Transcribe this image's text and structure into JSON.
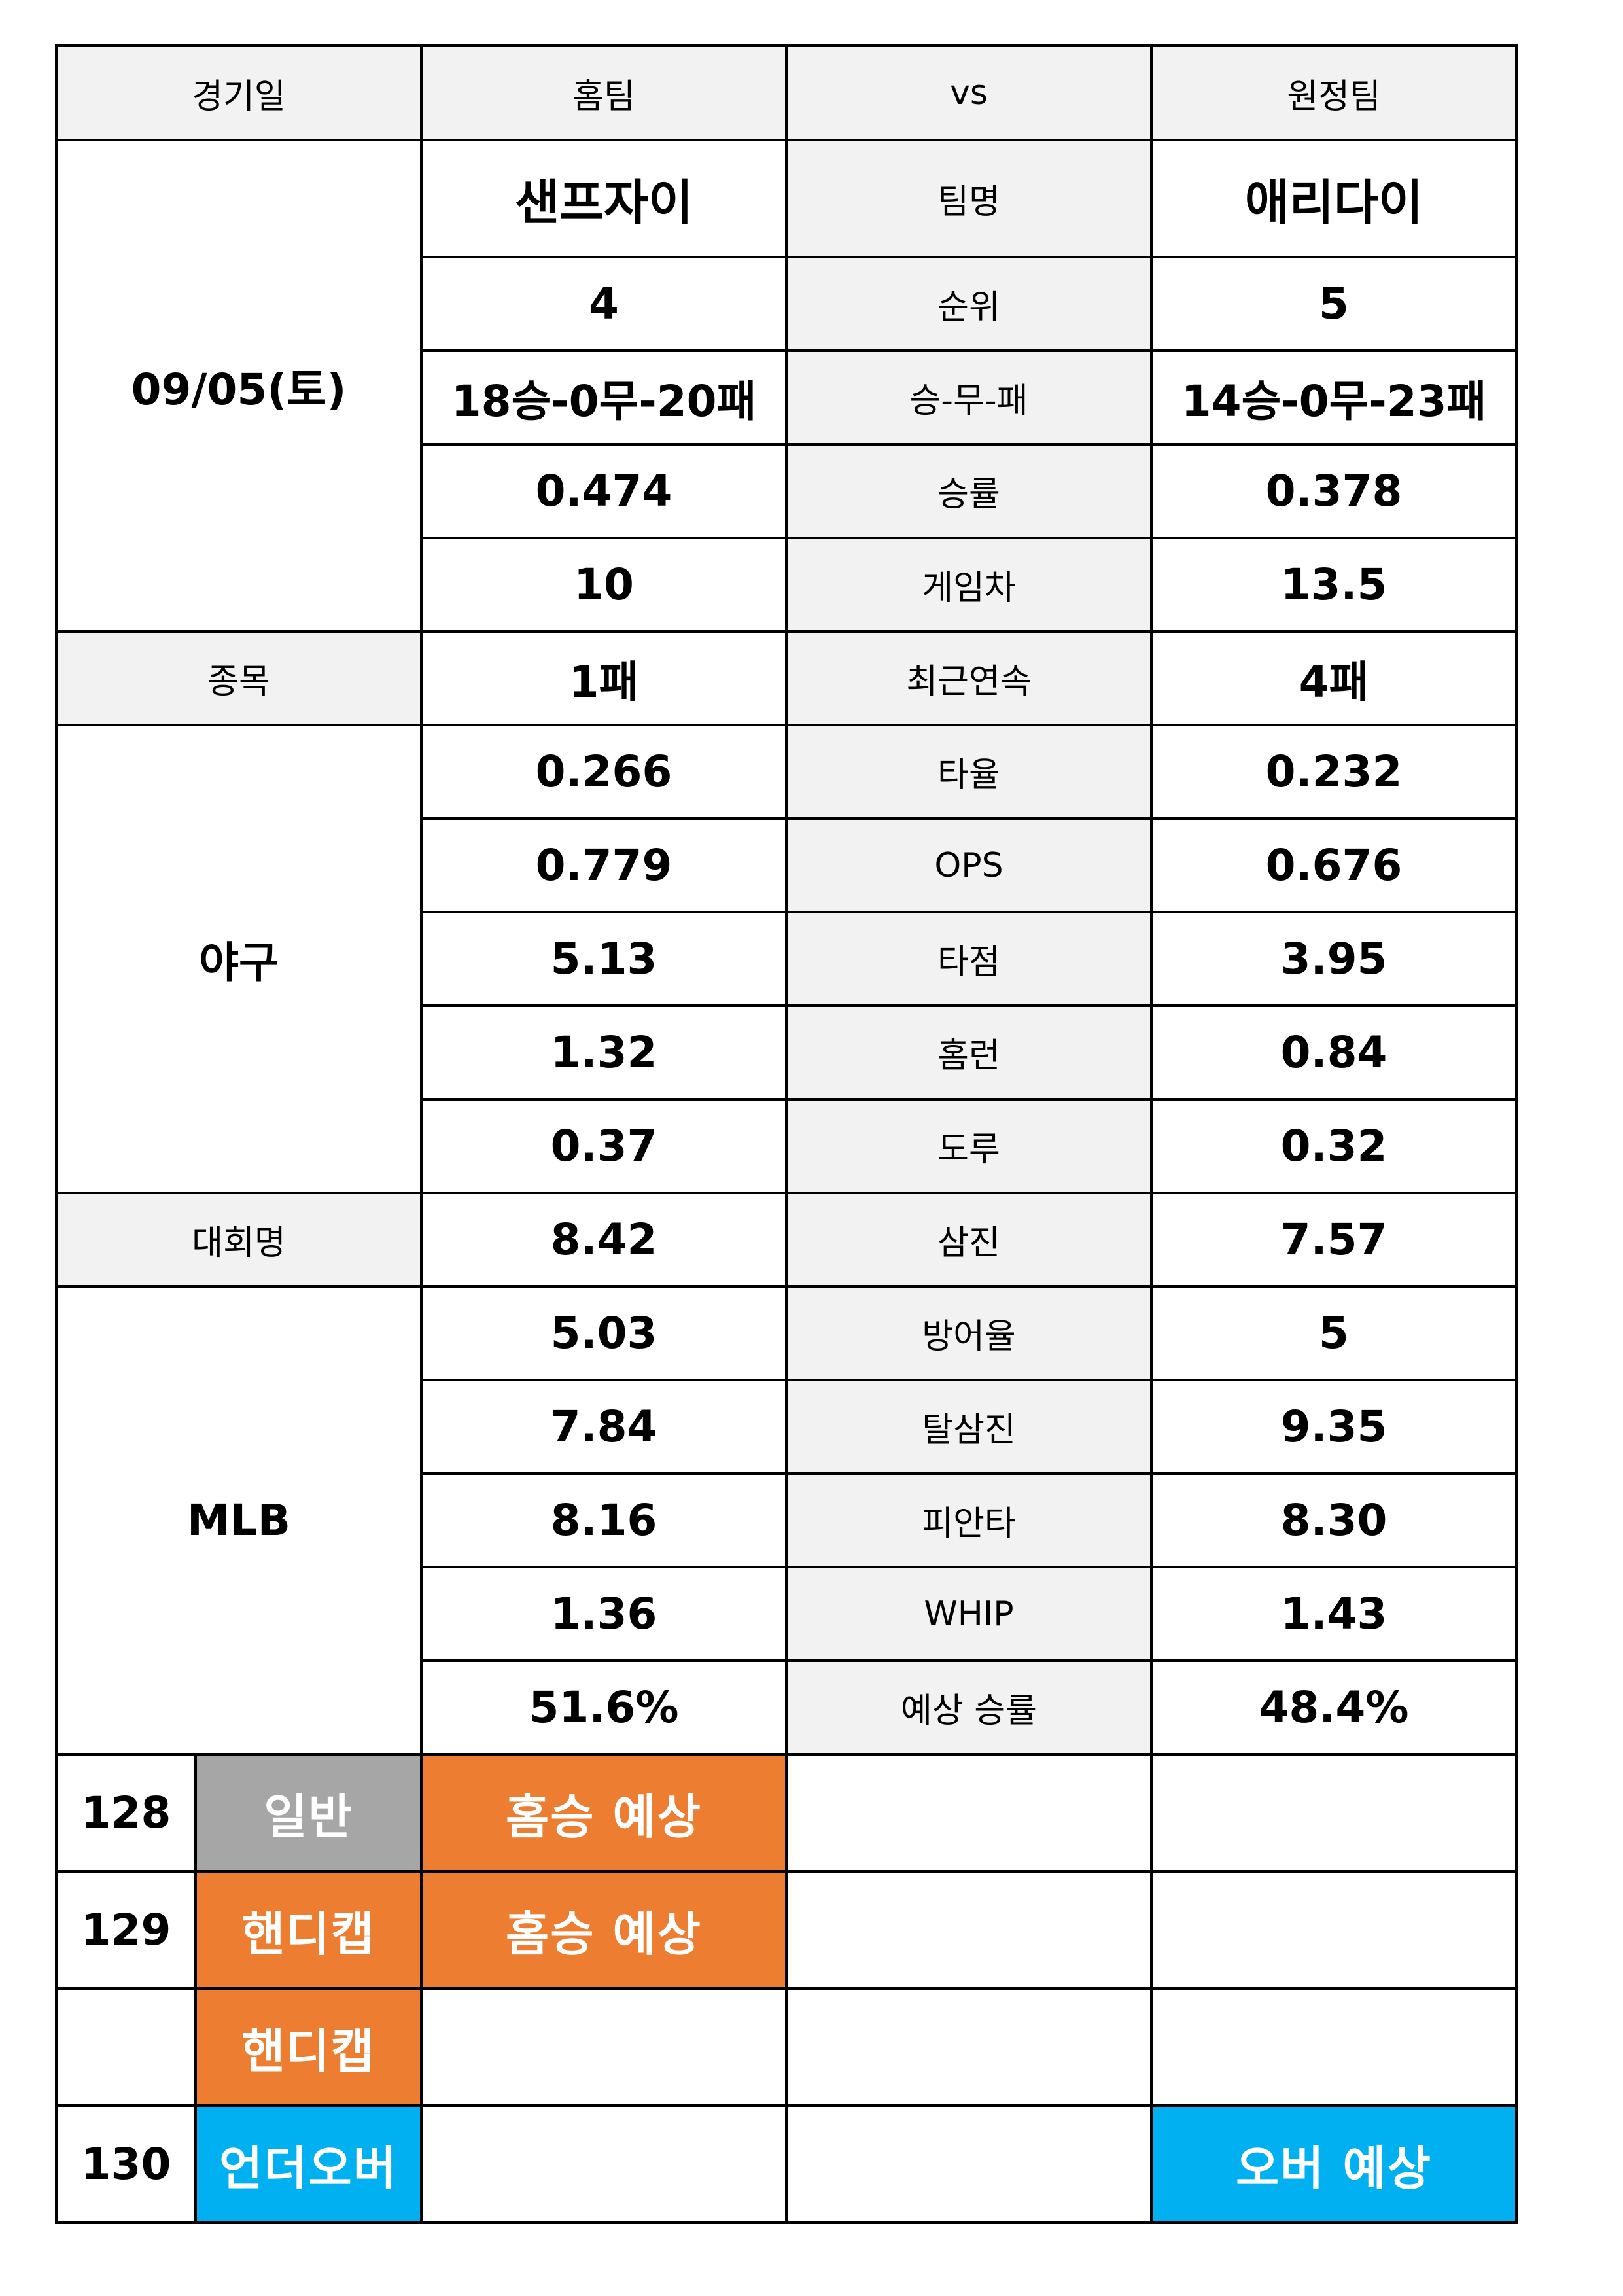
{
  "header": {
    "date": "경기일",
    "home": "홈팀",
    "vs": "vs",
    "away": "원정팀"
  },
  "side": {
    "date_value": "09/05(토)",
    "sport_label": "종목",
    "sport_value": "야구",
    "league_label": "대회명",
    "league_value": "MLB"
  },
  "stats": [
    {
      "label": "팀명",
      "home": "샌프자이",
      "away": "애리다이"
    },
    {
      "label": "순위",
      "home": "4",
      "away": "5"
    },
    {
      "label": "승-무-패",
      "home": "18승-0무-20패",
      "away": "14승-0무-23패"
    },
    {
      "label": "승률",
      "home": "0.474",
      "away": "0.378"
    },
    {
      "label": "게임차",
      "home": "10",
      "away": "13.5"
    },
    {
      "label": "최근연속",
      "home": "1패",
      "away": "4패"
    },
    {
      "label": "타율",
      "home": "0.266",
      "away": "0.232"
    },
    {
      "label": "OPS",
      "home": "0.779",
      "away": "0.676"
    },
    {
      "label": "타점",
      "home": "5.13",
      "away": "3.95"
    },
    {
      "label": "홈런",
      "home": "1.32",
      "away": "0.84"
    },
    {
      "label": "도루",
      "home": "0.37",
      "away": "0.32"
    },
    {
      "label": "삼진",
      "home": "8.42",
      "away": "7.57"
    },
    {
      "label": "방어율",
      "home": "5.03",
      "away": "5"
    },
    {
      "label": "탈삼진",
      "home": "7.84",
      "away": "9.35"
    },
    {
      "label": "피안타",
      "home": "8.16",
      "away": "8.30"
    },
    {
      "label": "WHIP",
      "home": "1.36",
      "away": "1.43"
    },
    {
      "label": "예상 승률",
      "home": "51.6%",
      "away": "48.4%"
    }
  ],
  "picks": [
    {
      "number": "128",
      "type": "일반",
      "home_pick": "홈승 예상",
      "draw_pick": "",
      "away_pick": ""
    },
    {
      "number": "129",
      "type": "핸디캡",
      "home_pick": "홈승 예상",
      "draw_pick": "",
      "away_pick": ""
    },
    {
      "number": "",
      "type": "핸디캡",
      "home_pick": "",
      "draw_pick": "",
      "away_pick": ""
    },
    {
      "number": "130",
      "type": "언더오버",
      "home_pick": "",
      "draw_pick": "",
      "away_pick": "오버 예상"
    }
  ],
  "colors": {
    "gray": "#a6a6a6",
    "orange": "#ed7d31",
    "blue": "#00b0f0",
    "label_bg": "#f2f2f2"
  }
}
